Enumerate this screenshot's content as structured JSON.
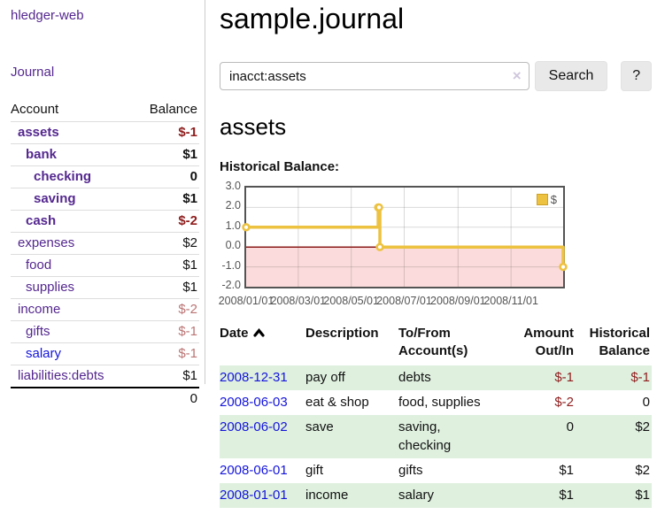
{
  "sidebar": {
    "brand": "hledger-web",
    "journal_link": "Journal",
    "accounts_table": {
      "header_account": "Account",
      "header_balance": "Balance",
      "rows": [
        {
          "name": "assets",
          "balance": "$-1",
          "depth": 0,
          "bold": true,
          "link_color": "purple",
          "balance_tone": "neg-strong"
        },
        {
          "name": "bank",
          "balance": "$1",
          "depth": 1,
          "bold": true,
          "link_color": "purple",
          "balance_tone": "normal"
        },
        {
          "name": "checking",
          "balance": "0",
          "depth": 2,
          "bold": true,
          "link_color": "purple",
          "balance_tone": "normal"
        },
        {
          "name": "saving",
          "balance": "$1",
          "depth": 2,
          "bold": true,
          "link_color": "purple",
          "balance_tone": "normal"
        },
        {
          "name": "cash",
          "balance": "$-2",
          "depth": 1,
          "bold": true,
          "link_color": "purple",
          "balance_tone": "neg-strong"
        },
        {
          "name": "expenses",
          "balance": "$2",
          "depth": 0,
          "bold": false,
          "link_color": "purple",
          "balance_tone": "normal"
        },
        {
          "name": "food",
          "balance": "$1",
          "depth": 1,
          "bold": false,
          "link_color": "purple",
          "balance_tone": "normal"
        },
        {
          "name": "supplies",
          "balance": "$1",
          "depth": 1,
          "bold": false,
          "link_color": "purple",
          "balance_tone": "normal"
        },
        {
          "name": "income",
          "balance": "$-2",
          "depth": 0,
          "bold": false,
          "link_color": "purple",
          "balance_tone": "neg-soft"
        },
        {
          "name": "gifts",
          "balance": "$-1",
          "depth": 1,
          "bold": false,
          "link_color": "purple",
          "balance_tone": "neg-soft"
        },
        {
          "name": "salary",
          "balance": "$-1",
          "depth": 1,
          "bold": false,
          "link_color": "blue",
          "balance_tone": "neg-soft"
        },
        {
          "name": "liabilities:debts",
          "balance": "$1",
          "depth": 0,
          "bold": false,
          "link_color": "purple",
          "balance_tone": "normal"
        }
      ],
      "total": "0"
    }
  },
  "header": {
    "title": "sample.journal"
  },
  "search": {
    "value": "inacct:assets",
    "clear_icon": "×",
    "search_button": "Search",
    "help_button": "?"
  },
  "account_page": {
    "heading": "assets",
    "chart_label": "Historical Balance:"
  },
  "chart_data": {
    "type": "line",
    "title": "Historical Balance",
    "step": true,
    "series": [
      {
        "name": "$",
        "color": "#edc240",
        "points": [
          [
            "2008-01-01",
            1
          ],
          [
            "2008-06-01",
            2
          ],
          [
            "2008-06-02",
            2
          ],
          [
            "2008-06-03",
            0
          ],
          [
            "2008-12-31",
            -1
          ]
        ]
      }
    ],
    "xlim": [
      "2008-01-01",
      "2008-12-31"
    ],
    "ylim": [
      -2,
      3
    ],
    "x_ticks": [
      "2008/01/01",
      "2008/03/01",
      "2008/05/01",
      "2008/07/01",
      "2008/09/01",
      "2008/11/01"
    ],
    "y_ticks": [
      "3.0",
      "2.0",
      "1.0",
      "0.0",
      "-1.0",
      "-2.0"
    ],
    "grid": true,
    "legend_position": "top-right",
    "legend_label": "$",
    "negative_region_fill": "#fbdbdb",
    "zero_line_color": "#8b1a1a",
    "frame_color": "#545454"
  },
  "register": {
    "columns": [
      {
        "line1": "Date",
        "line2": "",
        "align": "left",
        "sorted": "asc"
      },
      {
        "line1": "Description",
        "line2": "",
        "align": "left"
      },
      {
        "line1": "To/From",
        "line2": "Account(s)",
        "align": "left"
      },
      {
        "line1": "Amount",
        "line2": "Out/In",
        "align": "right"
      },
      {
        "line1": "Historical",
        "line2": "Balance",
        "align": "right"
      }
    ],
    "rows": [
      {
        "date": "2008-12-31",
        "description": "pay off",
        "accounts": "debts",
        "amount": "$-1",
        "balance": "$-1",
        "amount_negative": true,
        "balance_negative": true,
        "shaded": true
      },
      {
        "date": "2008-06-03",
        "description": "eat & shop",
        "accounts": "food, supplies",
        "amount": "$-2",
        "balance": "0",
        "amount_negative": true,
        "balance_negative": false,
        "shaded": false
      },
      {
        "date": "2008-06-02",
        "description": "save",
        "accounts": "saving, checking",
        "amount": "0",
        "balance": "$2",
        "amount_negative": false,
        "balance_negative": false,
        "shaded": true
      },
      {
        "date": "2008-06-01",
        "description": "gift",
        "accounts": "gifts",
        "amount": "$1",
        "balance": "$2",
        "amount_negative": false,
        "balance_negative": false,
        "shaded": false
      },
      {
        "date": "2008-01-01",
        "description": "income",
        "accounts": "salary",
        "amount": "$1",
        "balance": "$1",
        "amount_negative": false,
        "balance_negative": false,
        "shaded": true
      }
    ]
  },
  "colors": {
    "link_purple": "#54278f",
    "link_blue": "#1414dc",
    "negative_strong": "#8f1d1d",
    "negative_soft": "#bb7474",
    "row_stripe_green": "#dff0df",
    "chart_line_yellow": "#edc240",
    "chart_negative_pink": "#fbdbdb",
    "chart_zero_line": "#8b1a1a"
  }
}
